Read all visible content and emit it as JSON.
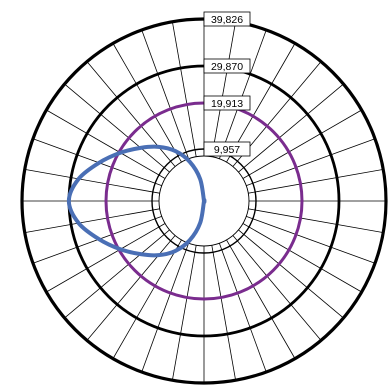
{
  "chart_data": {
    "type": "polar-line",
    "title": "",
    "radial_ticks": [
      "9,957",
      "19,913",
      "29,870",
      "39,826"
    ],
    "radial_tick_values": [
      9957,
      19913,
      29870,
      39826
    ],
    "radial_range": [
      0,
      39826
    ],
    "angular_grid_step_deg": 10,
    "grid": true,
    "series": [
      {
        "color": "#7a2c8e",
        "angles_deg": [
          0,
          30,
          60,
          90,
          120,
          150,
          180,
          210,
          240,
          270,
          300,
          330
        ],
        "values": [
          19913,
          19913,
          19913,
          19913,
          19913,
          19913,
          19913,
          19913,
          19913,
          19913,
          19913,
          19913
        ]
      },
      {
        "color": "#4a6fb5",
        "angles_deg": [
          90,
          100,
          110,
          120,
          130,
          140,
          150,
          160,
          170,
          180,
          190,
          200,
          210,
          220,
          230,
          240,
          250,
          260,
          270
        ],
        "values": [
          0,
          4300,
          8000,
          11200,
          14000,
          16600,
          19600,
          23600,
          27800,
          29900,
          27800,
          23600,
          19600,
          16600,
          14000,
          11200,
          8000,
          4300,
          0
        ]
      }
    ]
  }
}
